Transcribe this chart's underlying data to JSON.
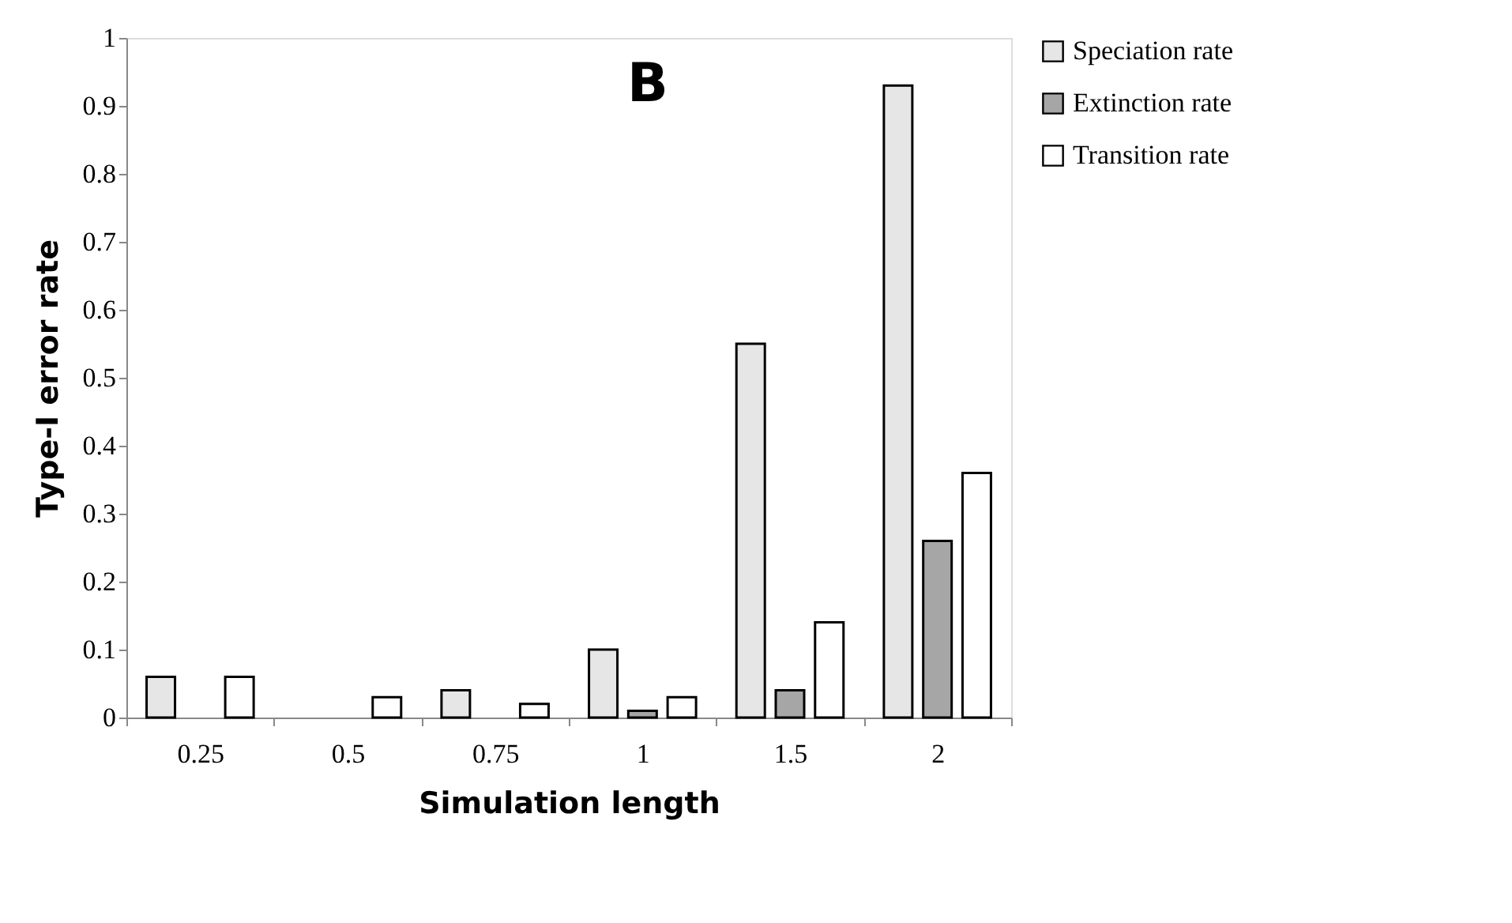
{
  "chart_data": {
    "type": "bar",
    "title": "B",
    "xlabel": "Simulation length",
    "ylabel": "Type-I error rate",
    "categories": [
      "0.25",
      "0.5",
      "0.75",
      "1",
      "1.5",
      "2"
    ],
    "series": [
      {
        "name": "Speciation rate",
        "color": "#e6e6e6",
        "values": [
          0.06,
          null,
          0.04,
          0.1,
          0.55,
          0.93
        ]
      },
      {
        "name": "Extinction rate",
        "color": "#a6a6a6",
        "values": [
          null,
          null,
          null,
          0.01,
          0.04,
          0.26
        ]
      },
      {
        "name": "Transition rate",
        "color": "#ffffff",
        "values": [
          0.06,
          0.03,
          0.02,
          0.03,
          0.14,
          0.36
        ]
      }
    ],
    "ylim": [
      0,
      1
    ],
    "yticks": [
      0,
      0.1,
      0.2,
      0.3,
      0.4,
      0.5,
      0.6,
      0.7,
      0.8,
      0.9,
      1
    ],
    "grid": false,
    "legend": "right"
  }
}
